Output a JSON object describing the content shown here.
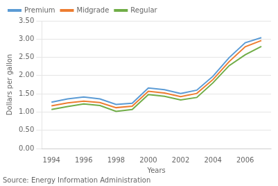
{
  "chart_data": {
    "type": "line",
    "x": [
      1994,
      1995,
      1996,
      1997,
      1998,
      1999,
      2000,
      2001,
      2002,
      2003,
      2004,
      2005,
      2006,
      2007
    ],
    "series": [
      {
        "name": "Premium",
        "color": "#5b9bd5",
        "values": [
          1.27,
          1.36,
          1.41,
          1.36,
          1.21,
          1.24,
          1.66,
          1.61,
          1.51,
          1.6,
          1.98,
          2.49,
          2.9,
          3.04
        ]
      },
      {
        "name": "Midgrade",
        "color": "#ed7d31",
        "values": [
          1.17,
          1.25,
          1.3,
          1.26,
          1.12,
          1.16,
          1.57,
          1.52,
          1.42,
          1.51,
          1.89,
          2.38,
          2.79,
          2.96
        ]
      },
      {
        "name": "Regular",
        "color": "#70ad47",
        "values": [
          1.07,
          1.15,
          1.22,
          1.18,
          1.02,
          1.07,
          1.48,
          1.43,
          1.33,
          1.4,
          1.8,
          2.27,
          2.57,
          2.8
        ]
      }
    ],
    "xlabel": "Years",
    "ylabel": "Dollars per gallon",
    "annotation": "Source: Energy Information Administration",
    "xlim": [
      1993.4,
      2007.6
    ],
    "xticks": [
      1994,
      1996,
      1998,
      2000,
      2002,
      2004,
      2006
    ],
    "ylim": [
      0.0,
      3.5
    ],
    "yticks": [
      {
        "value": 0.0,
        "label": "0.00"
      },
      {
        "value": 0.5,
        "label": "0.50"
      },
      {
        "value": 1.0,
        "label": "1.00"
      },
      {
        "value": 1.5,
        "label": "1.50"
      },
      {
        "value": 2.0,
        "label": "2.00"
      },
      {
        "value": 2.5,
        "label": "2.50"
      },
      {
        "value": 3.0,
        "label": "3.00"
      },
      {
        "value": 3.5,
        "label": "3.50"
      }
    ],
    "grid": "y",
    "legend": "upper left"
  }
}
